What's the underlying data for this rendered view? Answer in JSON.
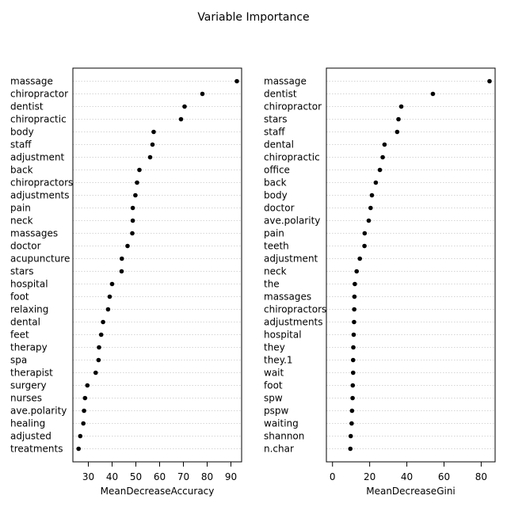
{
  "title": "Variable Importance",
  "chart_data": [
    {
      "type": "dotplot",
      "xlabel": "MeanDecreaseAccuracy",
      "xlim": [
        23.5,
        94.5
      ],
      "xticks": [
        30,
        40,
        50,
        60,
        70,
        80,
        90
      ],
      "grid": "dotted horizontal",
      "categories": [
        "massage",
        "chiropractor",
        "dentist",
        "chiropractic",
        "body",
        "staff",
        "adjustment",
        "back",
        "chiropractors",
        "adjustments",
        "pain",
        "neck",
        "massages",
        "doctor",
        "acupuncture",
        "stars",
        "hospital",
        "foot",
        "relaxing",
        "dental",
        "feet",
        "therapy",
        "spa",
        "therapist",
        "surgery",
        "nurses",
        "ave.polarity",
        "healing",
        "adjusted",
        "treatments"
      ],
      "values": [
        92.5,
        78,
        70.5,
        69,
        57.5,
        57,
        56,
        51.5,
        50.5,
        49.8,
        48.7,
        48.7,
        48.5,
        46.5,
        44.1,
        44,
        40,
        39,
        38.3,
        36.2,
        35.4,
        34.5,
        34.3,
        33.1,
        29.6,
        28.6,
        28.2,
        27.9,
        26.6,
        25.9
      ]
    },
    {
      "type": "dotplot",
      "xlabel": "MeanDecreaseGini",
      "xlim": [
        -3.3,
        87.5
      ],
      "xticks": [
        0,
        20,
        40,
        60,
        80
      ],
      "grid": "dotted horizontal",
      "categories": [
        "massage",
        "dentist",
        "chiropractor",
        "stars",
        "staff",
        "dental",
        "chiropractic",
        "office",
        "back",
        "body",
        "doctor",
        "ave.polarity",
        "pain",
        "teeth",
        "adjustment",
        "neck",
        "the",
        "massages",
        "chiropractors",
        "adjustments",
        "hospital",
        "they",
        "they.1",
        "wait",
        "foot",
        "spw",
        "pspw",
        "waiting",
        "shannon",
        "n.char"
      ],
      "values": [
        84.5,
        54,
        37,
        35.5,
        34.8,
        28,
        27,
        25.5,
        23.3,
        21.2,
        20.5,
        19.5,
        17.3,
        17.2,
        14.7,
        13,
        12,
        11.8,
        11.7,
        11.6,
        11.4,
        11.2,
        11.1,
        11.1,
        10.9,
        10.8,
        10.5,
        10.3,
        9.8,
        9.6
      ]
    }
  ]
}
